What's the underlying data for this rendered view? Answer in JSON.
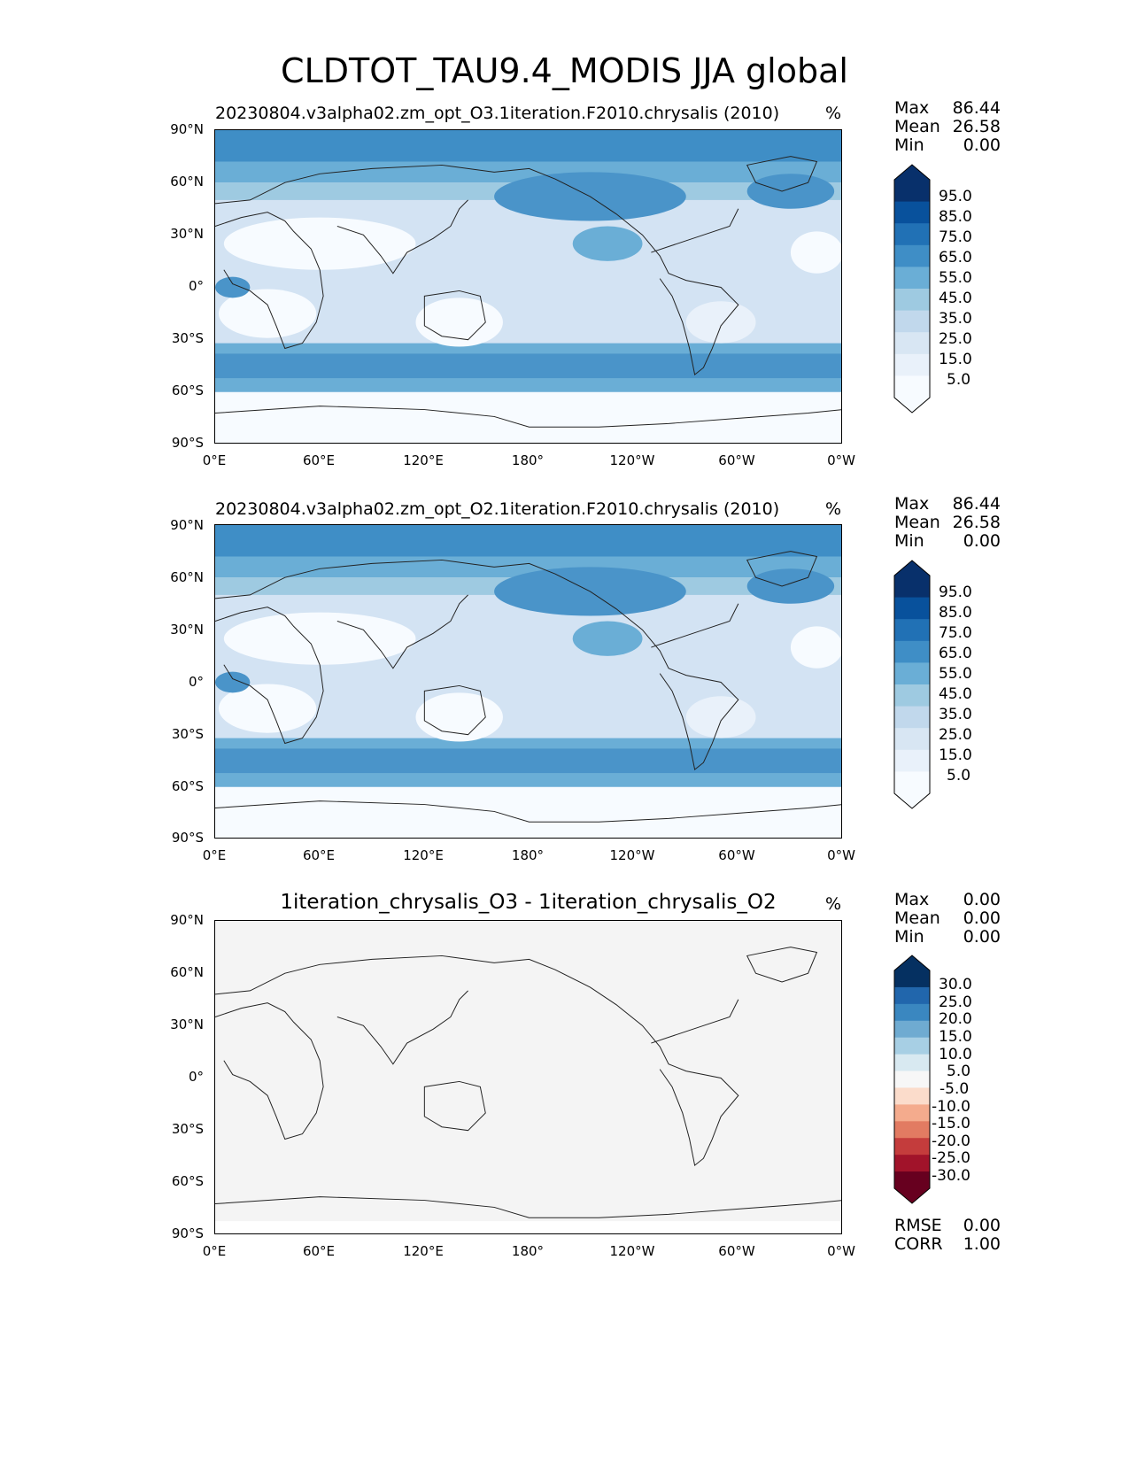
{
  "title": "CLDTOT_TAU9.4_MODIS JJA global",
  "lat_ticks": [
    "90°N",
    "60°N",
    "30°N",
    "0°",
    "30°S",
    "60°S",
    "90°S"
  ],
  "lon_ticks": [
    "0°E",
    "60°E",
    "120°E",
    "180°",
    "120°W",
    "60°W",
    "0°W"
  ],
  "panels": [
    {
      "title": "20230804.v3alpha02.zm_opt_O3.1iteration.F2010.chrysalis (2010)",
      "unit": "%",
      "stats": {
        "max_label": "Max",
        "max": "86.44",
        "mean_label": "Mean",
        "mean": "26.58",
        "min_label": "Min",
        "min": "0.00"
      },
      "colorbar": {
        "labels": [
          "95.0",
          "85.0",
          "75.0",
          "65.0",
          "55.0",
          "45.0",
          "35.0",
          "25.0",
          "15.0",
          "5.0"
        ],
        "colors": [
          "#08306b",
          "#08519c",
          "#2171b5",
          "#3f8ec6",
          "#6aaed6",
          "#9ecae1",
          "#c1d8ec",
          "#d8e6f3",
          "#e9f1fa",
          "#f7fbff"
        ]
      }
    },
    {
      "title": "20230804.v3alpha02.zm_opt_O2.1iteration.F2010.chrysalis (2010)",
      "unit": "%",
      "stats": {
        "max_label": "Max",
        "max": "86.44",
        "mean_label": "Mean",
        "mean": "26.58",
        "min_label": "Min",
        "min": "0.00"
      },
      "colorbar": {
        "labels": [
          "95.0",
          "85.0",
          "75.0",
          "65.0",
          "55.0",
          "45.0",
          "35.0",
          "25.0",
          "15.0",
          "5.0"
        ],
        "colors": [
          "#08306b",
          "#08519c",
          "#2171b5",
          "#3f8ec6",
          "#6aaed6",
          "#9ecae1",
          "#c1d8ec",
          "#d8e6f3",
          "#e9f1fa",
          "#f7fbff"
        ]
      }
    },
    {
      "title": "1iteration_chrysalis_O3 - 1iteration_chrysalis_O2",
      "unit": "%",
      "stats": {
        "max_label": "Max",
        "max": "0.00",
        "mean_label": "Mean",
        "mean": "0.00",
        "min_label": "Min",
        "min": "0.00"
      },
      "colorbar": {
        "labels": [
          "30.0",
          "25.0",
          "20.0",
          "15.0",
          "10.0",
          "5.0",
          "-5.0",
          "-10.0",
          "-15.0",
          "-20.0",
          "-25.0",
          "-30.0"
        ],
        "colors": [
          "#053061",
          "#2166ac",
          "#3a87c0",
          "#6fabd1",
          "#a7cfe4",
          "#d8e9f1",
          "#f7f7f7",
          "#fbdccb",
          "#f4ab8d",
          "#e27b62",
          "#c43c3c",
          "#a1132a",
          "#67001f"
        ]
      },
      "rmse_label": "RMSE",
      "rmse": "0.00",
      "corr_label": "CORR",
      "corr": "1.00"
    }
  ]
}
